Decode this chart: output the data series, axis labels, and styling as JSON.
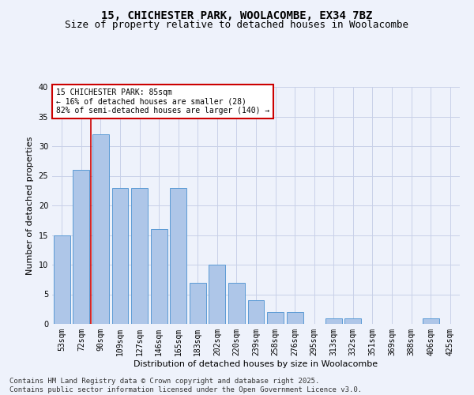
{
  "title1": "15, CHICHESTER PARK, WOOLACOMBE, EX34 7BZ",
  "title2": "Size of property relative to detached houses in Woolacombe",
  "xlabel": "Distribution of detached houses by size in Woolacombe",
  "ylabel": "Number of detached properties",
  "categories": [
    "53sqm",
    "72sqm",
    "90sqm",
    "109sqm",
    "127sqm",
    "146sqm",
    "165sqm",
    "183sqm",
    "202sqm",
    "220sqm",
    "239sqm",
    "258sqm",
    "276sqm",
    "295sqm",
    "313sqm",
    "332sqm",
    "351sqm",
    "369sqm",
    "388sqm",
    "406sqm",
    "425sqm"
  ],
  "values": [
    15,
    26,
    32,
    23,
    23,
    16,
    23,
    7,
    10,
    7,
    4,
    2,
    2,
    0,
    1,
    1,
    0,
    0,
    0,
    1,
    0
  ],
  "bar_color": "#aec6e8",
  "bar_edge_color": "#5b9bd5",
  "bar_width": 0.85,
  "ylim": [
    0,
    40
  ],
  "yticks": [
    0,
    5,
    10,
    15,
    20,
    25,
    30,
    35,
    40
  ],
  "red_line_x": 1.5,
  "annotation_title": "15 CHICHESTER PARK: 85sqm",
  "annotation_line1": "← 16% of detached houses are smaller (28)",
  "annotation_line2": "82% of semi-detached houses are larger (140) →",
  "annotation_box_color": "#ffffff",
  "annotation_box_edge": "#cc0000",
  "red_line_color": "#cc0000",
  "background_color": "#eef2fb",
  "grid_color": "#c8d0e8",
  "footer1": "Contains HM Land Registry data © Crown copyright and database right 2025.",
  "footer2": "Contains public sector information licensed under the Open Government Licence v3.0.",
  "title_fontsize": 10,
  "subtitle_fontsize": 9,
  "axis_label_fontsize": 8,
  "tick_fontsize": 7,
  "annot_fontsize": 7,
  "footer_fontsize": 6.5
}
